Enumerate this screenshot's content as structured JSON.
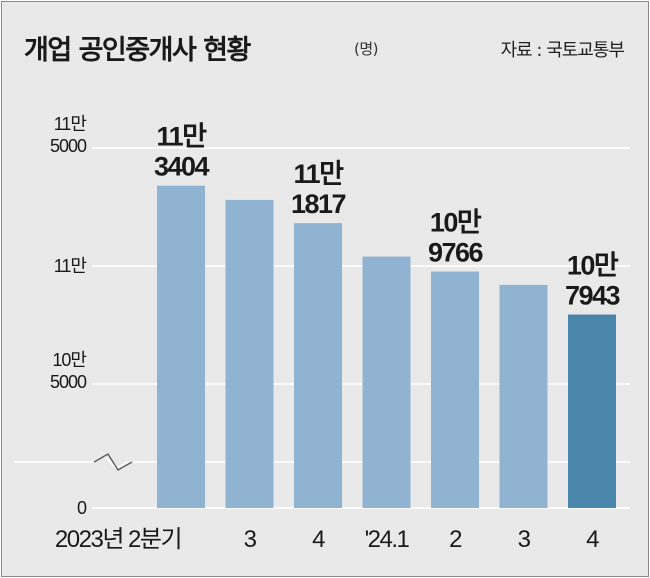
{
  "title": "개업 공인중개사 현황",
  "unit": "(명)",
  "source": "자료 : 국토교통부",
  "colors": {
    "background": "#e9e9e9",
    "bar": "#8fb3d1",
    "bar_highlight": "#4a86aa",
    "grid": "#ffffff",
    "text": "#1a1a1a"
  },
  "chart_data": {
    "type": "bar",
    "title": "개업 공인중개사 현황",
    "unit": "명",
    "categories": [
      "2023년 2분기",
      "3",
      "4",
      "'24.1",
      "2",
      "3",
      "4"
    ],
    "values": [
      113404,
      112800,
      111817,
      110400,
      109766,
      109200,
      107943
    ],
    "data_labels": [
      {
        "index": 0,
        "line1": "11만",
        "line2": "3404"
      },
      {
        "index": 2,
        "line1": "11만",
        "line2": "1817"
      },
      {
        "index": 4,
        "line1": "10만",
        "line2": "9766"
      },
      {
        "index": 6,
        "line1": "10만",
        "line2": "7943"
      }
    ],
    "y_ticks": [
      {
        "value": 0,
        "line1": "0",
        "line2": ""
      },
      {
        "value": 105000,
        "line1": "10만",
        "line2": "5000"
      },
      {
        "value": 110000,
        "line1": "11만",
        "line2": ""
      },
      {
        "value": 115000,
        "line1": "11만",
        "line2": "5000"
      }
    ],
    "ylim": [
      105000,
      115000
    ],
    "axis_break": true,
    "grid": true,
    "highlight_index": 6
  }
}
